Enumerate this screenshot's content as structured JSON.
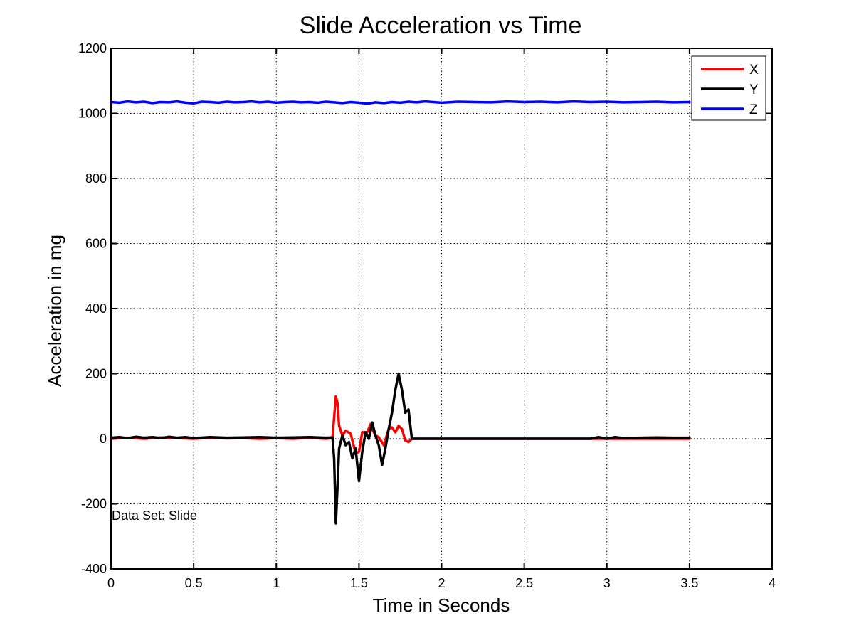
{
  "chart_data": {
    "type": "line",
    "title": "Slide Acceleration vs Time",
    "xlabel": "Time in Seconds",
    "ylabel": "Acceleration in mg",
    "xlim": [
      0,
      4
    ],
    "ylim": [
      -400,
      1200
    ],
    "xticks": [
      0,
      0.5,
      1,
      1.5,
      2,
      2.5,
      3,
      3.5,
      4
    ],
    "xtick_labels": [
      "0",
      "0.5",
      "1",
      "1.5",
      "2",
      "2.5",
      "3",
      "3.5",
      "4"
    ],
    "yticks": [
      -400,
      -200,
      0,
      200,
      400,
      600,
      800,
      1000,
      1200
    ],
    "ytick_labels": [
      "-400",
      "-200",
      "0",
      "200",
      "400",
      "600",
      "800",
      "1000",
      "1200"
    ],
    "grid": true,
    "legend_position": "top-right",
    "annotation": "Data Set: Slide",
    "series": [
      {
        "name": "X",
        "color": "#ff0000",
        "x": [
          0,
          0.1,
          0.2,
          0.3,
          0.4,
          0.5,
          0.6,
          0.7,
          0.8,
          0.9,
          1.0,
          1.1,
          1.2,
          1.3,
          1.34,
          1.36,
          1.37,
          1.38,
          1.4,
          1.42,
          1.45,
          1.48,
          1.5,
          1.52,
          1.55,
          1.57,
          1.58,
          1.6,
          1.62,
          1.65,
          1.68,
          1.7,
          1.72,
          1.74,
          1.76,
          1.78,
          1.8,
          1.82,
          2.0,
          2.5,
          3.0,
          3.5
        ],
        "values": [
          0,
          3,
          0,
          4,
          2,
          0,
          3,
          1,
          2,
          0,
          2,
          0,
          3,
          0,
          2,
          130,
          110,
          40,
          10,
          25,
          15,
          -45,
          -40,
          20,
          20,
          45,
          30,
          10,
          5,
          -20,
          30,
          35,
          20,
          40,
          30,
          -5,
          -10,
          0,
          0,
          0,
          0,
          0
        ]
      },
      {
        "name": "Y",
        "color": "#000000",
        "x": [
          0,
          0.05,
          0.1,
          0.15,
          0.2,
          0.25,
          0.3,
          0.35,
          0.4,
          0.45,
          0.5,
          0.6,
          0.7,
          0.8,
          0.9,
          1.0,
          1.1,
          1.2,
          1.3,
          1.34,
          1.35,
          1.36,
          1.37,
          1.38,
          1.4,
          1.42,
          1.44,
          1.46,
          1.48,
          1.5,
          1.52,
          1.54,
          1.56,
          1.58,
          1.6,
          1.62,
          1.64,
          1.66,
          1.68,
          1.7,
          1.72,
          1.74,
          1.76,
          1.78,
          1.8,
          1.82,
          2.0,
          2.5,
          2.9,
          2.95,
          3.0,
          3.05,
          3.1,
          3.2,
          3.3,
          3.4,
          3.5
        ],
        "values": [
          3,
          5,
          2,
          6,
          3,
          5,
          2,
          6,
          3,
          5,
          2,
          5,
          3,
          4,
          5,
          3,
          4,
          5,
          3,
          4,
          -60,
          -260,
          -150,
          -30,
          10,
          -20,
          -10,
          -60,
          -30,
          -130,
          -40,
          20,
          0,
          50,
          10,
          -20,
          -80,
          -30,
          30,
          80,
          150,
          200,
          150,
          80,
          90,
          0,
          0,
          0,
          0,
          5,
          0,
          5,
          2,
          3,
          4,
          3,
          3
        ]
      },
      {
        "name": "Z",
        "color": "#0000ff",
        "x": [
          0,
          0.05,
          0.1,
          0.15,
          0.2,
          0.25,
          0.3,
          0.35,
          0.4,
          0.45,
          0.5,
          0.55,
          0.6,
          0.65,
          0.7,
          0.75,
          0.8,
          0.85,
          0.9,
          0.95,
          1.0,
          1.05,
          1.1,
          1.15,
          1.2,
          1.25,
          1.3,
          1.35,
          1.4,
          1.45,
          1.5,
          1.55,
          1.6,
          1.65,
          1.7,
          1.75,
          1.8,
          1.85,
          1.9,
          1.95,
          2.0,
          2.1,
          2.2,
          2.3,
          2.4,
          2.5,
          2.6,
          2.7,
          2.8,
          2.9,
          3.0,
          3.1,
          3.2,
          3.3,
          3.4,
          3.5
        ],
        "values": [
          1035,
          1033,
          1037,
          1034,
          1036,
          1032,
          1035,
          1034,
          1037,
          1033,
          1031,
          1036,
          1035,
          1033,
          1036,
          1034,
          1035,
          1037,
          1034,
          1036,
          1033,
          1035,
          1036,
          1034,
          1035,
          1033,
          1036,
          1034,
          1032,
          1035,
          1033,
          1030,
          1034,
          1032,
          1035,
          1033,
          1036,
          1034,
          1037,
          1035,
          1033,
          1036,
          1035,
          1034,
          1037,
          1035,
          1036,
          1034,
          1037,
          1035,
          1036,
          1034,
          1035,
          1036,
          1034,
          1035
        ]
      }
    ]
  }
}
